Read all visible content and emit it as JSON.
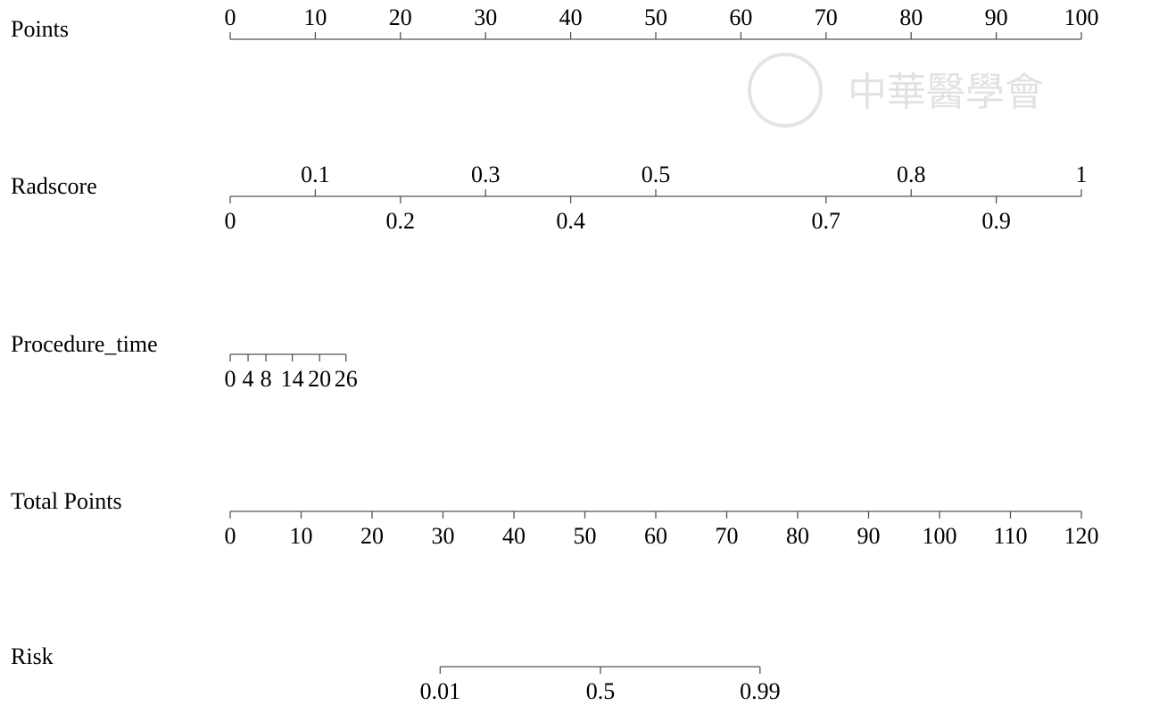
{
  "chart_data": {
    "type": "nomogram",
    "watermark": "中華醫學會",
    "rows": [
      {
        "label": "Points",
        "scale": "points",
        "xlim": [
          0,
          100
        ],
        "ticks": [
          0,
          10,
          20,
          30,
          40,
          50,
          60,
          70,
          80,
          90,
          100
        ],
        "tick_labels": "above"
      },
      {
        "label": "Radscore",
        "scale": "points",
        "ticks": [
          0,
          0.1,
          0.2,
          0.3,
          0.4,
          0.5,
          0.7,
          0.8,
          0.9,
          1
        ],
        "points": [
          0,
          10,
          20,
          30,
          40,
          50,
          70,
          80,
          90,
          100
        ],
        "tick_labels": "alternate"
      },
      {
        "label": "Procedure_time",
        "scale": "points",
        "ticks": [
          0,
          4,
          8,
          14,
          20,
          26
        ],
        "points": [
          0,
          2.1,
          4.2,
          7.3,
          10.5,
          13.6
        ],
        "tick_labels": "below"
      },
      {
        "label": "Total Points",
        "scale": "total",
        "xlim": [
          0,
          120
        ],
        "ticks": [
          0,
          10,
          20,
          30,
          40,
          50,
          60,
          70,
          80,
          90,
          100,
          110,
          120
        ],
        "tick_labels": "below"
      },
      {
        "label": "Risk",
        "scale": "total",
        "ticks": [
          0.01,
          0.5,
          0.99
        ],
        "total_points": [
          29.6,
          52.2,
          74.7
        ],
        "tick_labels": "below"
      }
    ]
  }
}
